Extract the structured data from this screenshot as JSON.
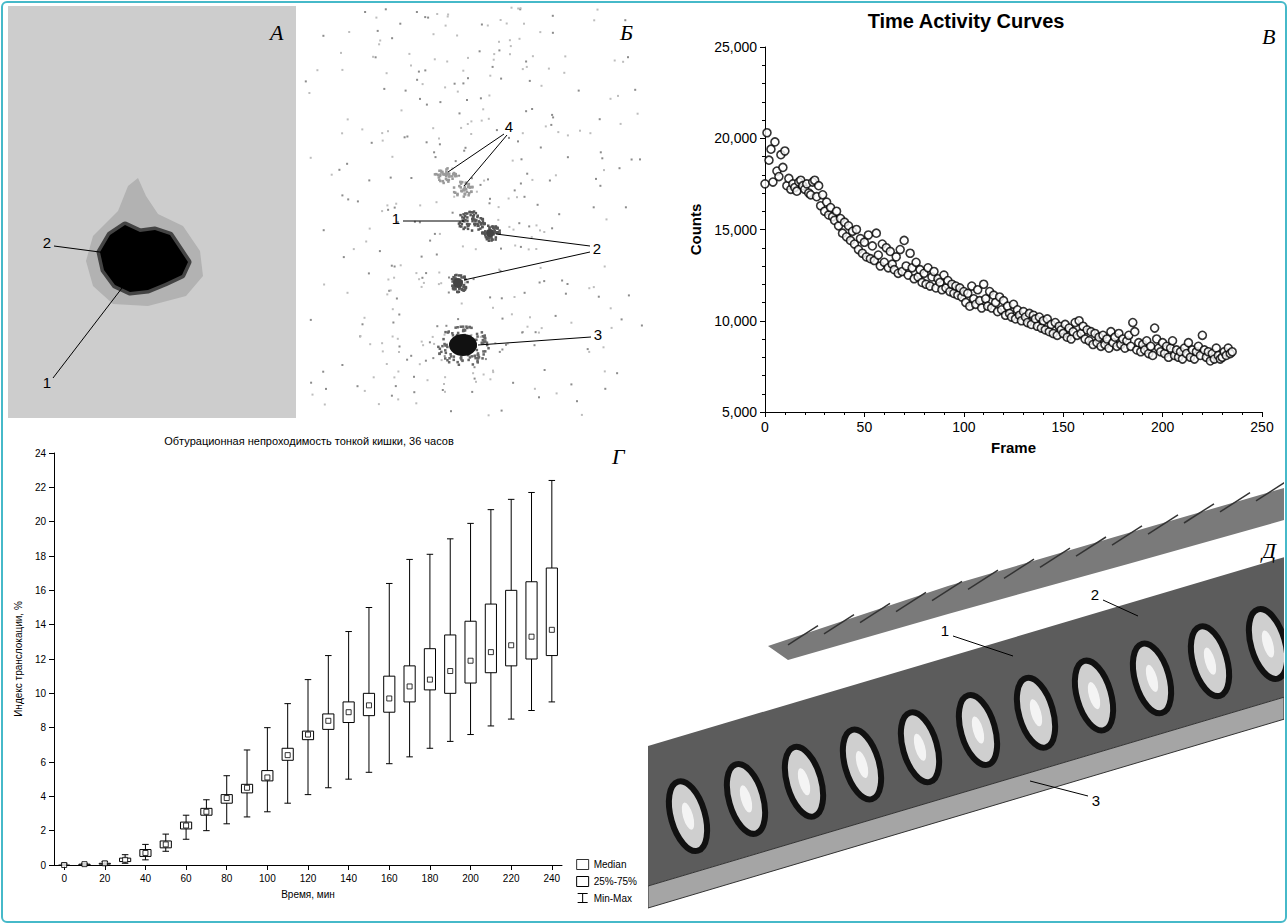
{
  "images": [
    {
      "panel": "А",
      "labels": [
        "1",
        "2"
      ]
    },
    {
      "panel": "Б",
      "labels": [
        "1",
        "2",
        "3",
        "4"
      ]
    },
    {
      "panel": "Д",
      "labels": [
        "1",
        "2",
        "3"
      ]
    }
  ],
  "chart_data": [
    {
      "panel": "В",
      "type": "scatter",
      "title": "Time Activity Curves",
      "x_label": "Frame",
      "y_label": "Counts",
      "x": [
        0,
        1,
        2,
        3,
        4,
        5,
        6,
        7,
        8,
        9,
        10,
        11,
        12,
        13,
        14,
        15,
        16,
        17,
        18,
        19,
        20,
        21,
        22,
        23,
        24,
        25,
        26,
        27,
        28,
        29,
        30,
        31,
        32,
        33,
        34,
        35,
        36,
        37,
        38,
        39,
        40,
        41,
        42,
        43,
        44,
        45,
        46,
        47,
        48,
        49,
        50,
        51,
        52,
        53,
        54,
        55,
        56,
        57,
        58,
        59,
        60,
        61,
        62,
        63,
        64,
        65,
        66,
        67,
        68,
        69,
        70,
        71,
        72,
        73,
        74,
        75,
        76,
        77,
        78,
        79,
        80,
        81,
        82,
        83,
        84,
        85,
        86,
        87,
        88,
        89,
        90,
        91,
        92,
        93,
        94,
        95,
        96,
        97,
        98,
        99,
        100,
        101,
        102,
        103,
        104,
        105,
        106,
        107,
        108,
        109,
        110,
        111,
        112,
        113,
        114,
        115,
        116,
        117,
        118,
        119,
        120,
        121,
        122,
        123,
        124,
        125,
        126,
        127,
        128,
        129,
        130,
        131,
        132,
        133,
        134,
        135,
        136,
        137,
        138,
        139,
        140,
        141,
        142,
        143,
        144,
        145,
        146,
        147,
        148,
        149,
        150,
        151,
        152,
        153,
        154,
        155,
        156,
        157,
        158,
        159,
        160,
        161,
        162,
        163,
        164,
        165,
        166,
        167,
        168,
        169,
        170,
        171,
        172,
        173,
        174,
        175,
        176,
        177,
        178,
        179,
        180,
        181,
        182,
        183,
        184,
        185,
        186,
        187,
        188,
        189,
        190,
        191,
        192,
        193,
        194,
        195,
        196,
        197,
        198,
        199,
        200,
        201,
        202,
        203,
        204,
        205,
        206,
        207,
        208,
        209,
        210,
        211,
        212,
        213,
        214,
        215,
        216,
        217,
        218,
        219,
        220,
        221,
        222,
        223,
        224,
        225,
        226,
        227,
        228,
        229,
        230,
        231,
        232,
        233,
        234,
        235
      ],
      "values": [
        17500,
        20300,
        18800,
        19400,
        17600,
        19800,
        18200,
        17900,
        19100,
        18400,
        19300,
        17400,
        17800,
        17200,
        17500,
        17300,
        17100,
        17600,
        17700,
        17400,
        17200,
        17500,
        17000,
        16900,
        17600,
        17700,
        16800,
        17400,
        16300,
        16900,
        16000,
        16500,
        15800,
        16200,
        15700,
        15500,
        16000,
        15200,
        15600,
        14800,
        15400,
        14600,
        15200,
        14400,
        14900,
        14200,
        15000,
        13900,
        14500,
        13700,
        14300,
        13500,
        14700,
        13400,
        14100,
        13300,
        14800,
        13600,
        13000,
        14200,
        13200,
        14000,
        12900,
        13800,
        13100,
        12800,
        13500,
        12600,
        13900,
        12700,
        14400,
        13000,
        12500,
        13700,
        12900,
        12300,
        13200,
        12400,
        12800,
        12100,
        12600,
        12000,
        12900,
        11900,
        12400,
        12700,
        11800,
        12300,
        12100,
        11700,
        12500,
        11800,
        12200,
        11600,
        12000,
        11500,
        11900,
        11400,
        11800,
        11300,
        11600,
        11000,
        11500,
        10800,
        11900,
        11200,
        10900,
        11700,
        11100,
        10700,
        12000,
        11200,
        10800,
        11600,
        10700,
        11400,
        11000,
        10500,
        11300,
        10600,
        11100,
        10300,
        10800,
        10400,
        10200,
        10900,
        10100,
        10600,
        10300,
        10000,
        10500,
        10200,
        9900,
        10400,
        9800,
        10300,
        10100,
        9700,
        10200,
        9600,
        10000,
        9500,
        10100,
        9400,
        9800,
        9300,
        9900,
        9200,
        9700,
        9500,
        9300,
        9800,
        9100,
        9600,
        9000,
        9400,
        9900,
        9200,
        10000,
        9300,
        9700,
        9000,
        9500,
        8900,
        9400,
        8700,
        9300,
        8800,
        9100,
        8600,
        9200,
        8700,
        9000,
        8500,
        9400,
        8800,
        9100,
        8600,
        9300,
        8700,
        9000,
        8500,
        8900,
        9200,
        8600,
        9900,
        9400,
        8400,
        8800,
        8300,
        8700,
        8400,
        8900,
        8200,
        8600,
        8100,
        9600,
        9000,
        8500,
        8300,
        8800,
        8200,
        8600,
        8000,
        8500,
        8900,
        8100,
        8400,
        8000,
        8300,
        7900,
        8500,
        8200,
        8800,
        8000,
        8400,
        7900,
        8300,
        8600,
        8100,
        9200,
        8400,
        8000,
        8300,
        7800,
        8200,
        7900,
        8500,
        8100,
        7900,
        8000,
        8300,
        8100,
        8500,
        8200,
        8300
      ],
      "color": "#000000",
      "marker": "circle_open",
      "xlim": [
        0,
        250
      ],
      "xticks": [
        0,
        50,
        100,
        150,
        200,
        250
      ],
      "ylim": [
        5000,
        25000
      ],
      "yticks": [
        5000,
        10000,
        15000,
        20000,
        25000
      ],
      "grid": false
    },
    {
      "panel": "Г",
      "type": "boxplot",
      "title": "Обтурационная непроходимость тонкой кишки, 36 часов",
      "x_label": "Время, мин",
      "y_label": "Индекс транслокации, %",
      "categories": [
        "0",
        null,
        "20",
        null,
        "40",
        null,
        "60",
        null,
        "80",
        null,
        "100",
        null,
        "120",
        null,
        "140",
        null,
        "160",
        null,
        "180",
        null,
        "200",
        null,
        "220",
        null,
        "240"
      ],
      "series": [
        {
          "name": "Median",
          "marker": "square_open",
          "values": [
            0,
            0.05,
            0.1,
            0.3,
            0.7,
            1.2,
            2.3,
            3.1,
            3.9,
            4.5,
            5.1,
            6.4,
            7.6,
            8.4,
            8.9,
            9.3,
            9.7,
            10.4,
            10.8,
            11.3,
            11.9,
            12.4,
            12.8,
            13.3,
            13.7
          ]
        },
        {
          "name": "25%-75%",
          "values": [
            [
              0,
              0
            ],
            [
              0,
              0.05
            ],
            [
              0.05,
              0.1
            ],
            [
              0.2,
              0.4
            ],
            [
              0.5,
              0.9
            ],
            [
              1.0,
              1.4
            ],
            [
              2.1,
              2.5
            ],
            [
              2.9,
              3.3
            ],
            [
              3.6,
              4.1
            ],
            [
              4.2,
              4.7
            ],
            [
              4.9,
              5.5
            ],
            [
              6.1,
              6.8
            ],
            [
              7.3,
              7.8
            ],
            [
              7.9,
              8.8
            ],
            [
              8.3,
              9.5
            ],
            [
              8.7,
              10.0
            ],
            [
              8.9,
              11.0
            ],
            [
              9.5,
              11.6
            ],
            [
              10.2,
              12.6
            ],
            [
              10.0,
              13.4
            ],
            [
              10.6,
              14.2
            ],
            [
              11.2,
              15.2
            ],
            [
              11.6,
              16.0
            ],
            [
              12.0,
              16.5
            ],
            [
              12.2,
              17.3
            ]
          ]
        },
        {
          "name": "Min-Max",
          "values": [
            [
              0,
              0.1
            ],
            [
              0,
              0.1
            ],
            [
              0,
              0.2
            ],
            [
              0.1,
              0.6
            ],
            [
              0.3,
              1.2
            ],
            [
              0.8,
              1.8
            ],
            [
              1.5,
              2.9
            ],
            [
              2.0,
              3.8
            ],
            [
              2.4,
              5.2
            ],
            [
              2.8,
              6.7
            ],
            [
              3.1,
              8.0
            ],
            [
              3.6,
              9.4
            ],
            [
              4.1,
              10.8
            ],
            [
              4.5,
              12.2
            ],
            [
              5.0,
              13.6
            ],
            [
              5.4,
              15.0
            ],
            [
              5.9,
              16.4
            ],
            [
              6.3,
              17.8
            ],
            [
              6.8,
              18.1
            ],
            [
              7.2,
              19.0
            ],
            [
              7.6,
              19.9
            ],
            [
              8.1,
              20.7
            ],
            [
              8.5,
              21.3
            ],
            [
              9.0,
              21.7
            ],
            [
              9.5,
              22.4
            ]
          ]
        }
      ],
      "ylim": [
        0,
        24
      ],
      "yticks": [
        0,
        2,
        4,
        6,
        8,
        10,
        12,
        14,
        16,
        18,
        20,
        22,
        24
      ],
      "grid": false,
      "legend": "bottom-right"
    }
  ]
}
